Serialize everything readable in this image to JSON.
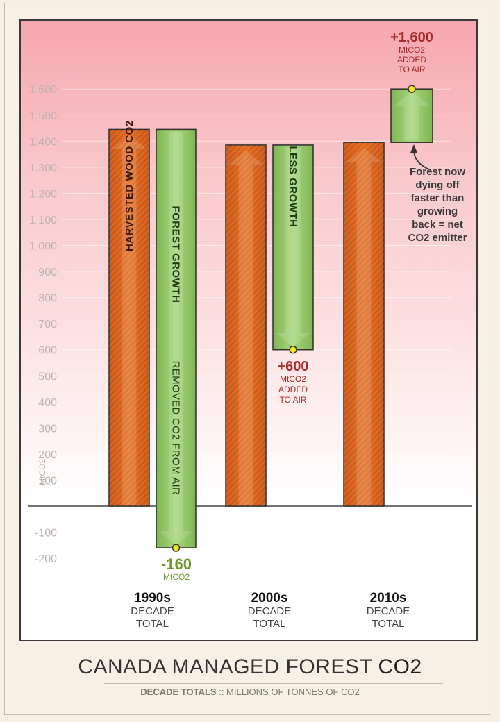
{
  "title": {
    "main": "CANADA MANAGED FOREST ",
    "highlight": "CO2"
  },
  "subtitle": {
    "part1": "DECADE TOTALS",
    "sep": " :: ",
    "part2": "MILLIONS OF TONNES OF CO2"
  },
  "colors": {
    "orange": "#e0681b",
    "green": "#8cc460",
    "red_label": "#a82a2a",
    "green_label": "#6a9a2e",
    "axis_text": "#bfb2b2"
  },
  "chart_data": {
    "type": "bar",
    "title": "CANADA MANAGED FOREST CO2",
    "subtitle": "DECADE TOTALS :: MILLIONS OF TONNES OF CO2",
    "ylabel": "MtCO2",
    "ylim": [
      -200,
      1700
    ],
    "yticks": [
      -200,
      -100,
      100,
      200,
      300,
      400,
      500,
      600,
      700,
      800,
      900,
      1000,
      1100,
      1200,
      1300,
      1400,
      1500,
      1600
    ],
    "grid": true,
    "categories": [
      {
        "label": "1990s",
        "sub1": "DECADE",
        "sub2": "TOTAL"
      },
      {
        "label": "2000s",
        "sub1": "DECADE",
        "sub2": "TOTAL"
      },
      {
        "label": "2010s",
        "sub1": "DECADE",
        "sub2": "TOTAL"
      }
    ],
    "series": [
      {
        "name": "HARVESTED WOOD CO2",
        "bars": [
          {
            "from": 0,
            "to": 1445,
            "label": "HARVESTED WOOD CO2"
          },
          {
            "from": 0,
            "to": 1385,
            "label": ""
          },
          {
            "from": 0,
            "to": 1395,
            "label": ""
          }
        ]
      },
      {
        "name": "FOREST GROWTH",
        "bars": [
          {
            "from": 1445,
            "to": -160,
            "label1": "FOREST GROWTH",
            "label2": "REMOVED CO2 FROM AIR"
          },
          {
            "from": 1385,
            "to": 600,
            "label1": "LESS GROWTH",
            "label2": ""
          },
          {
            "from": 1395,
            "to": 1600,
            "label1": "",
            "label2": ""
          }
        ]
      }
    ],
    "net_labels": [
      {
        "value": "-160",
        "unit": "MtCO2",
        "added1": "",
        "added2": ""
      },
      {
        "value": "+600",
        "unit": "MtCO2",
        "added1": "ADDED",
        "added2": "TO AIR"
      },
      {
        "value": "+1,600",
        "unit": "MtCO2",
        "added1": "ADDED",
        "added2": "TO AIR"
      }
    ],
    "annotations": [
      {
        "lines": [
          "Forest now",
          "dying off",
          "faster than",
          "growing",
          "back = net",
          "CO2 emitter"
        ]
      }
    ]
  }
}
